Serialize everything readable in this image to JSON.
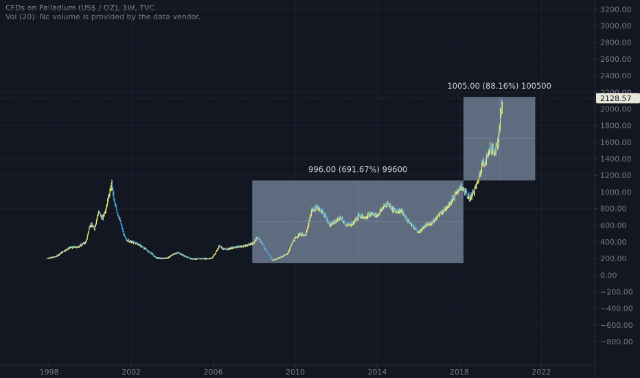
{
  "legend": {
    "title": "CFDs on Palladium (US$ / OZ), 1W, TVC",
    "volume_note": "Vol (20): No volume is provided by the data vendor."
  },
  "colors": {
    "background": "#131722",
    "up": "#f6ec6b",
    "down": "#4ea7e8",
    "measure_fill": "#7d8da3",
    "price_line": "#363a45",
    "axis_text": "#787b86"
  },
  "price_label": "2128.57",
  "chart_data": {
    "type": "line",
    "title": "CFDs on Palladium (US$ / OZ), 1W, TVC",
    "xlabel": "",
    "ylabel": "",
    "x_ticks": [
      "1998",
      "2002",
      "2006",
      "2010",
      "2014",
      "2018",
      "2022"
    ],
    "y_ticks": [
      "3200.00",
      "3000.00",
      "2800.00",
      "2600.00",
      "2400.00",
      "2200.00",
      "2000.00",
      "1800.00",
      "1600.00",
      "1400.00",
      "1200.00",
      "1000.00",
      "800.00",
      "600.00",
      "400.00",
      "200.00",
      "0.00",
      "−200.00",
      "−400.00",
      "−600.00",
      "−800.00"
    ],
    "xlim": [
      1995.6,
      2024.6
    ],
    "ylim": [
      -1080,
      3310
    ],
    "last_price": 2128.57,
    "series": [
      {
        "x": [
          1997.9,
          1998.3,
          1998.7,
          1999.0,
          1999.4,
          1999.8,
          2000.0,
          2000.2,
          2000.4,
          2000.6,
          2000.8,
          2000.95,
          2001.05,
          2001.2,
          2001.4,
          2001.7,
          2002.0,
          2002.3,
          2002.6,
          2003.0,
          2003.2,
          2003.5,
          2003.8,
          2004.1,
          2004.3,
          2004.6,
          2004.9,
          2005.2,
          2005.5,
          2005.9,
          2006.1,
          2006.3,
          2006.5,
          2006.8,
          2007.1,
          2007.5,
          2007.9,
          2008.15,
          2008.3,
          2008.6,
          2008.9,
          2009.3,
          2009.6,
          2009.9,
          2010.2,
          2010.5,
          2010.8,
          2011.1,
          2011.4,
          2011.7,
          2011.9,
          2012.2,
          2012.5,
          2012.8,
          2013.1,
          2013.4,
          2013.7,
          2014.0,
          2014.3,
          2014.5,
          2014.8,
          2015.2,
          2015.5,
          2015.8,
          2016.0,
          2016.3,
          2016.6,
          2016.9,
          2017.2,
          2017.5,
          2017.8,
          2018.0,
          2018.2,
          2018.5,
          2018.7,
          2018.9,
          2019.1,
          2019.3,
          2019.5,
          2019.7,
          2019.9,
          2020.0,
          2020.1
        ],
        "values": [
          205,
          220,
          290,
          330,
          340,
          400,
          620,
          560,
          760,
          680,
          840,
          1010,
          1090,
          850,
          700,
          440,
          400,
          380,
          330,
          260,
          210,
          200,
          210,
          260,
          270,
          230,
          200,
          195,
          200,
          200,
          260,
          360,
          310,
          320,
          340,
          350,
          380,
          450,
          420,
          290,
          180,
          220,
          250,
          410,
          500,
          470,
          780,
          820,
          740,
          600,
          640,
          690,
          600,
          620,
          720,
          700,
          740,
          720,
          820,
          870,
          780,
          770,
          650,
          580,
          510,
          590,
          620,
          700,
          770,
          860,
          960,
          1050,
          1030,
          920,
          1000,
          1120,
          1330,
          1380,
          1540,
          1480,
          1640,
          1900,
          2128.57
        ]
      }
    ],
    "measurements": [
      {
        "label": "996.00 (691.67%) 99600",
        "x_start": 2007.9,
        "x_end": 2018.2,
        "y_low": 144,
        "y_high": 1140
      },
      {
        "label": "1005.00 (88.16%) 100500",
        "x_start": 2018.2,
        "x_end": 2021.7,
        "y_low": 1140,
        "y_high": 2145
      }
    ]
  }
}
